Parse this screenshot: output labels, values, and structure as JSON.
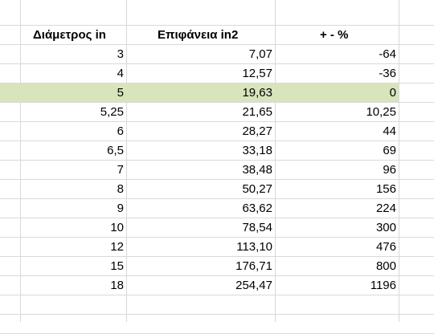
{
  "headers": {
    "diameter": "Διάμετρος in",
    "area": "Επιφάνεια in2",
    "percent": "+ - %"
  },
  "rows": [
    {
      "diameter": "3",
      "area": "7,07",
      "percent": "-64"
    },
    {
      "diameter": "4",
      "area": "12,57",
      "percent": "-36"
    },
    {
      "diameter": "5",
      "area": "19,63",
      "percent": "0"
    },
    {
      "diameter": "5,25",
      "area": "21,65",
      "percent": "10,25"
    },
    {
      "diameter": "6",
      "area": "28,27",
      "percent": "44"
    },
    {
      "diameter": "6,5",
      "area": "33,18",
      "percent": "69"
    },
    {
      "diameter": "7",
      "area": "38,48",
      "percent": "96"
    },
    {
      "diameter": "8",
      "area": "50,27",
      "percent": "156"
    },
    {
      "diameter": "9",
      "area": "63,62",
      "percent": "224"
    },
    {
      "diameter": "10",
      "area": "78,54",
      "percent": "300"
    },
    {
      "diameter": "12",
      "area": "113,10",
      "percent": "476"
    },
    {
      "diameter": "15",
      "area": "176,71",
      "percent": "800"
    },
    {
      "diameter": "18",
      "area": "254,47",
      "percent": "1196"
    }
  ],
  "highlight_row_index": 2,
  "colors": {
    "highlight": "#d8e4bc",
    "gridline": "#d9d9d9"
  }
}
